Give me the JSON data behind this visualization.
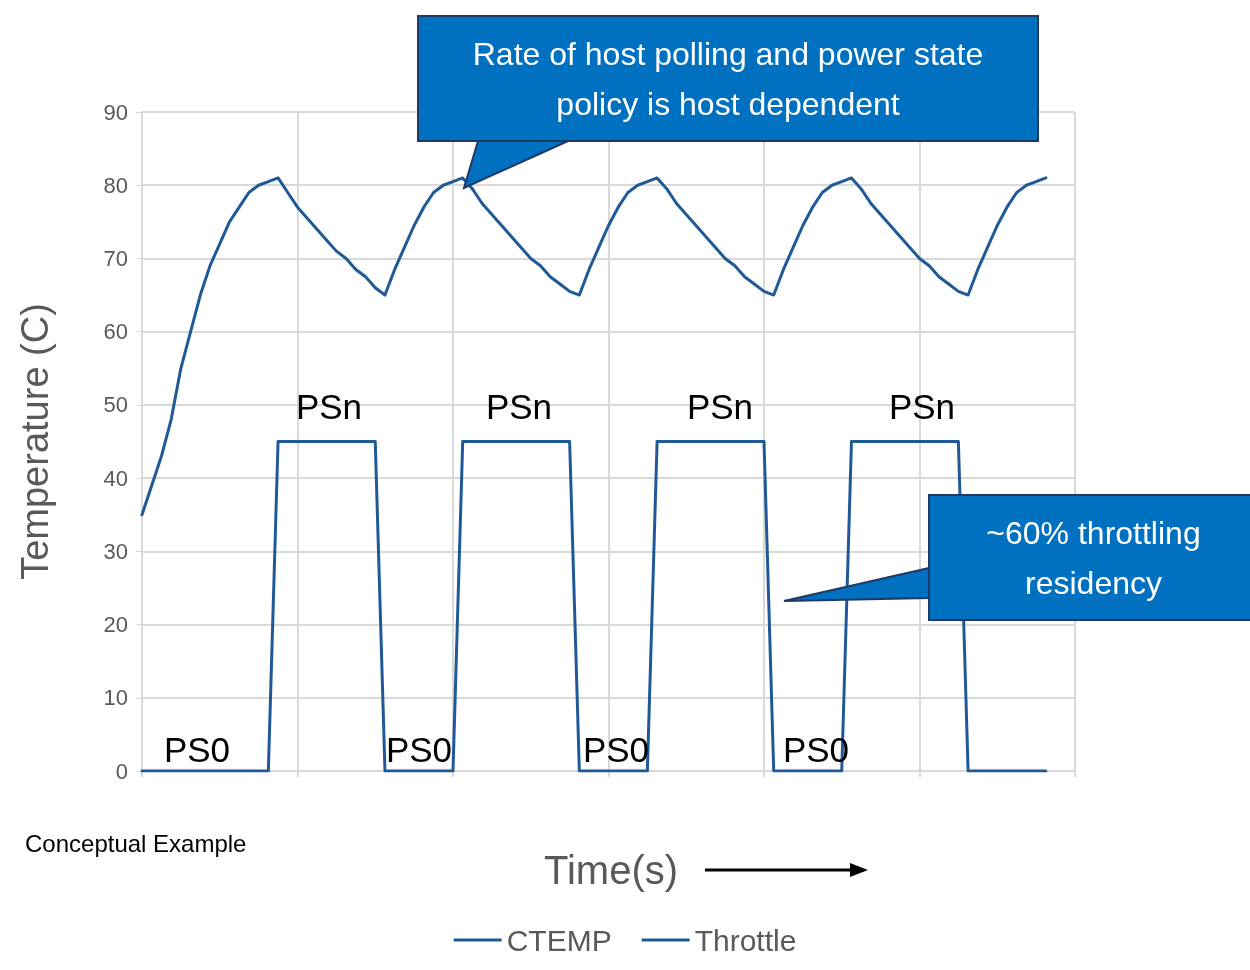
{
  "chart_data": {
    "type": "line",
    "ylabel": "Temperature (C)",
    "xlabel": "Time(s)",
    "categories": [
      null,
      null,
      null,
      null,
      null,
      null,
      null,
      null,
      null,
      null,
      null,
      null,
      null,
      null,
      null,
      null,
      null,
      null,
      null,
      null,
      null,
      null,
      null,
      null,
      null,
      null,
      null,
      null,
      null,
      null,
      null,
      null,
      null,
      null,
      null,
      null,
      null,
      null,
      null,
      null,
      null,
      null,
      null,
      null,
      null,
      null,
      null,
      null,
      null,
      null,
      null,
      null,
      null,
      null,
      null,
      null,
      null,
      null,
      null,
      null,
      null,
      null,
      null,
      null,
      null,
      null,
      null,
      null,
      null,
      null,
      null,
      null,
      null,
      null,
      null,
      null,
      null,
      null,
      null,
      null,
      null,
      null,
      null,
      null,
      null,
      null,
      null,
      null,
      null,
      null,
      null,
      null,
      null,
      null,
      null,
      null,
      null
    ],
    "series": [
      {
        "name": "CTEMP",
        "color": "#1f5a96",
        "values": [
          35,
          39,
          43,
          48,
          55,
          60,
          65,
          69,
          72,
          75,
          77,
          79,
          80,
          80.5,
          81,
          79,
          77,
          75.5,
          74,
          72.5,
          71,
          70,
          68.5,
          67.5,
          66,
          65,
          68.5,
          71.5,
          74.5,
          77,
          79,
          80,
          80.5,
          81,
          79.5,
          77.5,
          76,
          74.5,
          73,
          71.5,
          70,
          69,
          67.5,
          66.5,
          65.5,
          65,
          68.5,
          71.5,
          74.5,
          77,
          79,
          80,
          80.5,
          81,
          79.5,
          77.5,
          76,
          74.5,
          73,
          71.5,
          70,
          69,
          67.5,
          66.5,
          65.5,
          65,
          68.5,
          71.5,
          74.5,
          77,
          79,
          80,
          80.5,
          81,
          79.5,
          77.5,
          76,
          74.5,
          73,
          71.5,
          70,
          69,
          67.5,
          66.5,
          65.5,
          65,
          68.5,
          71.5,
          74.5,
          77,
          79,
          80,
          80.5,
          81,
          null,
          null,
          null
        ]
      },
      {
        "name": "Throttle",
        "color": "#1f5a96",
        "values": [
          0,
          0,
          0,
          0,
          0,
          0,
          0,
          0,
          0,
          0,
          0,
          0,
          0,
          0,
          45,
          45,
          45,
          45,
          45,
          45,
          45,
          45,
          45,
          45,
          45,
          0,
          0,
          0,
          0,
          0,
          0,
          0,
          0,
          45,
          45,
          45,
          45,
          45,
          45,
          45,
          45,
          45,
          45,
          45,
          45,
          0,
          0,
          0,
          0,
          0,
          0,
          0,
          0,
          45,
          45,
          45,
          45,
          45,
          45,
          45,
          45,
          45,
          45,
          45,
          45,
          0,
          0,
          0,
          0,
          0,
          0,
          0,
          0,
          45,
          45,
          45,
          45,
          45,
          45,
          45,
          45,
          45,
          45,
          45,
          45,
          0,
          0,
          0,
          0,
          0,
          0,
          0,
          0,
          0,
          null,
          null,
          null
        ]
      }
    ],
    "ylim": [
      0,
      90
    ],
    "yticks": [
      0,
      10,
      20,
      30,
      40,
      50,
      60,
      70,
      80,
      90
    ],
    "grid": true,
    "legend": "bottom",
    "marker": "none",
    "line_style": "solid",
    "annotations": [
      "Rate of host polling and power state policy is host dependent",
      "~60% throttling residency",
      "PSn",
      "PSn",
      "PSn",
      "PSn",
      "PS0",
      "PS0",
      "PS0",
      "PS0",
      "Conceptual Example"
    ]
  }
}
